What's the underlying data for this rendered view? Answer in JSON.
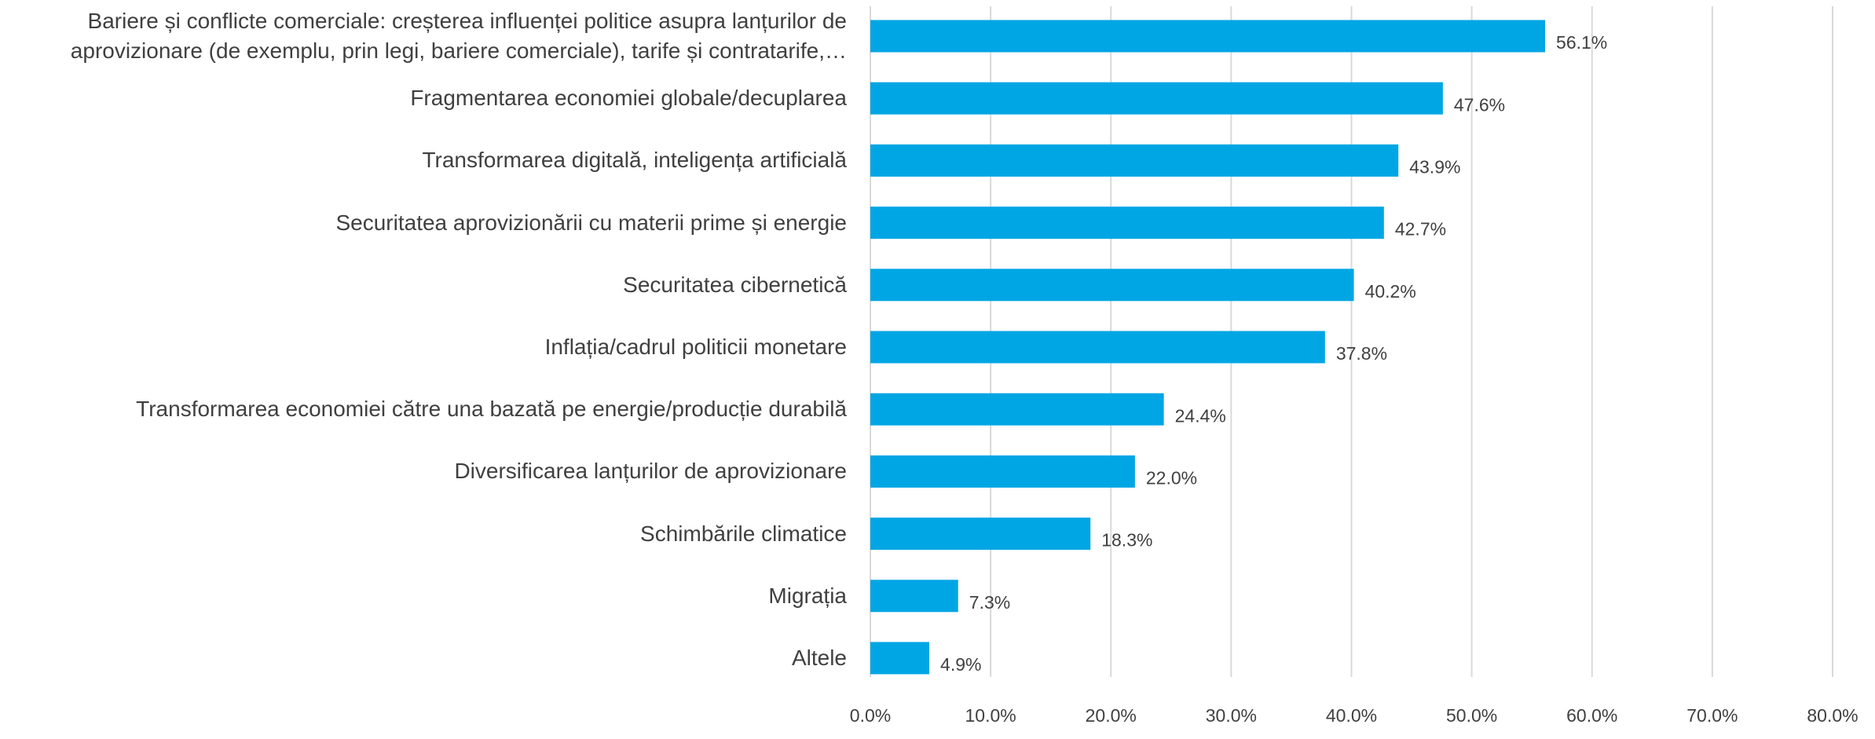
{
  "chart_data": {
    "type": "bar",
    "orientation": "horizontal",
    "categories": [
      "Bariere și conflicte comerciale: creșterea influenței politice asupra lanțurilor de aprovizionare (de exemplu, prin legi, bariere comerciale), tarife și contratarife,…",
      "Fragmentarea economiei globale/decuplarea",
      "Transformarea digitală, inteligența artificială",
      "Securitatea aprovizionării cu materii prime și energie",
      "Securitatea cibernetică",
      "Inflația/cadrul politicii monetare",
      "Transformarea economiei către una bazată pe energie/producție durabilă",
      "Diversificarea lanțurilor de aprovizionare",
      "Schimbările climatice",
      "Migrația",
      "Altele"
    ],
    "values": [
      56.1,
      47.6,
      43.9,
      42.7,
      40.2,
      37.8,
      24.4,
      22.0,
      18.3,
      7.3,
      4.9
    ],
    "value_labels": [
      "56.1%",
      "47.6%",
      "43.9%",
      "42.7%",
      "40.2%",
      "37.8%",
      "24.4%",
      "22.0%",
      "18.3%",
      "7.3%",
      "4.9%"
    ],
    "color": "#00a6e4",
    "xlim": [
      0,
      80
    ],
    "xticks": [
      {
        "value": 0,
        "label": "0.0%"
      },
      {
        "value": 10,
        "label": "10.0%"
      },
      {
        "value": 20,
        "label": "20.0%"
      },
      {
        "value": 30,
        "label": "30.0%"
      },
      {
        "value": 40,
        "label": "40.0%"
      },
      {
        "value": 50,
        "label": "50.0%"
      },
      {
        "value": 60,
        "label": "60.0%"
      },
      {
        "value": 70,
        "label": "70.0%"
      },
      {
        "value": 80,
        "label": "80.0%"
      }
    ],
    "grid": true
  }
}
